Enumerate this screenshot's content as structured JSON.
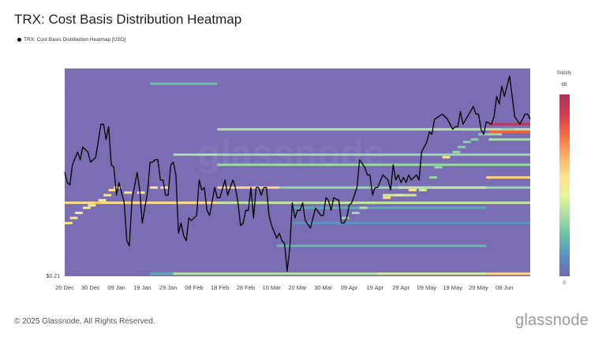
{
  "header": {
    "title": "TRX: Cost Basis Distribution Heatmap",
    "legend_label": "TRX: Cost Basis Distribution Heatmap [USD]"
  },
  "footer": {
    "copyright": "© 2025 Glassnode. All Rights Reserved.",
    "logo": "glassnode"
  },
  "watermark": "glassnode",
  "colorbar": {
    "title": "Supply",
    "max_label": "6B",
    "min_label": "0",
    "colors": [
      "#6f6ab0",
      "#5b8fc6",
      "#66c2a5",
      "#abdda4",
      "#e6f598",
      "#fee08b",
      "#fdae61",
      "#f46d43",
      "#d53e4f",
      "#b03060"
    ]
  },
  "chart_data": {
    "type": "heatmap",
    "title": "TRX: Cost Basis Distribution Heatmap",
    "background_color": "#7a6db3",
    "line_color": "#000000",
    "xlim": [
      "2024-12-20",
      "2025-06-18"
    ],
    "ylim": [
      0.21,
      0.292
    ],
    "y_tick_labels": [
      "$0.21"
    ],
    "x_tick_labels": [
      {
        "date": "2024-12-20",
        "label": "20 Dec"
      },
      {
        "date": "2024-12-30",
        "label": "30 Dec"
      },
      {
        "date": "2025-01-09",
        "label": "09 Jan"
      },
      {
        "date": "2025-01-19",
        "label": "19 Jan"
      },
      {
        "date": "2025-01-29",
        "label": "29 Jan"
      },
      {
        "date": "2025-02-08",
        "label": "08 Feb"
      },
      {
        "date": "2025-02-18",
        "label": "18 Feb"
      },
      {
        "date": "2025-02-28",
        "label": "28 Feb"
      },
      {
        "date": "2025-03-10",
        "label": "10 Mar"
      },
      {
        "date": "2025-03-20",
        "label": "20 Mar"
      },
      {
        "date": "2025-03-30",
        "label": "30 Mar"
      },
      {
        "date": "2025-04-09",
        "label": "09 Apr"
      },
      {
        "date": "2025-04-19",
        "label": "19 Apr"
      },
      {
        "date": "2025-04-29",
        "label": "29 Apr"
      },
      {
        "date": "2025-05-09",
        "label": "09 May"
      },
      {
        "date": "2025-05-19",
        "label": "19 May"
      },
      {
        "date": "2025-05-29",
        "label": "29 May"
      },
      {
        "date": "2025-06-08",
        "label": "08 Jun"
      }
    ],
    "bands": [
      {
        "price": 0.286,
        "from": "2025-01-22",
        "to": "2025-02-17",
        "level": 0.22
      },
      {
        "price": 0.268,
        "from": "2025-02-17",
        "to": "2025-06-18",
        "level": 0.36
      },
      {
        "price": 0.258,
        "from": "2025-01-31",
        "to": "2025-02-17",
        "level": 0.33
      },
      {
        "price": 0.258,
        "from": "2025-02-17",
        "to": "2025-06-18",
        "level": 0.3
      },
      {
        "price": 0.254,
        "from": "2025-02-17",
        "to": "2025-06-18",
        "level": 0.3
      },
      {
        "price": 0.245,
        "from": "2025-02-17",
        "to": "2025-03-13",
        "level": 0.58
      },
      {
        "price": 0.245,
        "from": "2025-03-13",
        "to": "2025-06-18",
        "level": 0.3
      },
      {
        "price": 0.239,
        "from": "2024-12-20",
        "to": "2025-02-17",
        "level": 0.56
      },
      {
        "price": 0.239,
        "from": "2025-02-17",
        "to": "2025-06-18",
        "level": 0.38
      },
      {
        "price": 0.237,
        "from": "2025-03-18",
        "to": "2025-06-01",
        "level": 0.17
      },
      {
        "price": 0.231,
        "from": "2025-03-18",
        "to": "2025-06-18",
        "level": 0.12
      },
      {
        "price": 0.222,
        "from": "2025-03-12",
        "to": "2025-06-01",
        "level": 0.2
      },
      {
        "price": 0.211,
        "from": "2025-01-22",
        "to": "2025-01-31",
        "level": 0.17
      },
      {
        "price": 0.211,
        "from": "2025-01-31",
        "to": "2025-04-20",
        "level": 0.36
      },
      {
        "price": 0.211,
        "from": "2025-04-20",
        "to": "2025-06-01",
        "level": 0.42
      },
      {
        "price": 0.211,
        "from": "2025-06-01",
        "to": "2025-06-18",
        "level": 0.58
      },
      {
        "price": 0.245,
        "from": "2025-04-28",
        "to": "2025-06-01",
        "level": 0.38
      },
      {
        "price": 0.242,
        "from": "2025-04-22",
        "to": "2025-05-05",
        "level": 0.4
      },
      {
        "price": 0.249,
        "from": "2025-06-01",
        "to": "2025-06-18",
        "level": 0.58
      },
      {
        "price": 0.264,
        "from": "2025-06-02",
        "to": "2025-06-18",
        "level": 0.34
      },
      {
        "price": 0.267,
        "from": "2025-06-02",
        "to": "2025-06-18",
        "level": 0.8
      },
      {
        "price": 0.27,
        "from": "2025-06-02",
        "to": "2025-06-18",
        "level": 0.95
      }
    ],
    "steps": [
      {
        "date": "2024-12-20",
        "price": 0.231,
        "level": 0.52
      },
      {
        "date": "2024-12-22",
        "price": 0.233,
        "level": 0.52
      },
      {
        "date": "2024-12-24",
        "price": 0.235,
        "level": 0.52
      },
      {
        "date": "2024-12-27",
        "price": 0.237,
        "level": 0.5
      },
      {
        "date": "2024-12-29",
        "price": 0.238,
        "level": 0.5
      },
      {
        "date": "2024-12-31",
        "price": 0.239,
        "level": 0.62
      },
      {
        "date": "2025-01-02",
        "price": 0.24,
        "level": 0.5
      },
      {
        "date": "2025-01-04",
        "price": 0.242,
        "level": 0.52
      },
      {
        "date": "2025-01-06",
        "price": 0.244,
        "level": 0.55
      },
      {
        "date": "2025-01-08",
        "price": 0.245,
        "level": 0.55
      },
      {
        "date": "2025-01-12",
        "price": 0.243,
        "level": 0.55
      },
      {
        "date": "2025-01-17",
        "price": 0.243,
        "level": 0.55
      },
      {
        "date": "2025-01-22",
        "price": 0.245,
        "level": 0.55
      },
      {
        "date": "2025-01-26",
        "price": 0.245,
        "level": 0.55
      },
      {
        "date": "2025-04-06",
        "price": 0.233,
        "level": 0.3
      },
      {
        "date": "2025-04-10",
        "price": 0.235,
        "level": 0.32
      },
      {
        "date": "2025-04-13",
        "price": 0.237,
        "level": 0.35
      },
      {
        "date": "2025-04-16",
        "price": 0.239,
        "level": 0.38
      },
      {
        "date": "2025-04-22",
        "price": 0.241,
        "level": 0.56
      },
      {
        "date": "2025-04-27",
        "price": 0.242,
        "level": 0.45
      },
      {
        "date": "2025-05-02",
        "price": 0.244,
        "level": 0.56
      },
      {
        "date": "2025-05-06",
        "price": 0.244,
        "level": 0.4
      },
      {
        "date": "2025-05-08",
        "price": 0.245,
        "level": 0.35
      },
      {
        "date": "2025-05-10",
        "price": 0.249,
        "level": 0.3
      },
      {
        "date": "2025-05-12",
        "price": 0.253,
        "level": 0.3
      },
      {
        "date": "2025-05-15",
        "price": 0.257,
        "level": 0.55
      },
      {
        "date": "2025-05-17",
        "price": 0.258,
        "level": 0.3
      },
      {
        "date": "2025-05-19",
        "price": 0.259,
        "level": 0.3
      },
      {
        "date": "2025-05-21",
        "price": 0.261,
        "level": 0.28
      },
      {
        "date": "2025-05-23",
        "price": 0.263,
        "level": 0.28
      },
      {
        "date": "2025-05-26",
        "price": 0.264,
        "level": 0.28
      },
      {
        "date": "2025-05-29",
        "price": 0.266,
        "level": 0.28
      },
      {
        "date": "2025-06-01",
        "price": 0.266,
        "level": 0.3
      },
      {
        "date": "2025-06-04",
        "price": 0.266,
        "level": 0.3
      },
      {
        "date": "2025-06-07",
        "price": 0.268,
        "level": 0.3
      },
      {
        "date": "2025-06-09",
        "price": 0.268,
        "level": 0.3
      }
    ],
    "price_series": [
      [
        "2024-12-20",
        0.251
      ],
      [
        "2024-12-21",
        0.247
      ],
      [
        "2024-12-22",
        0.246
      ],
      [
        "2024-12-23",
        0.254
      ],
      [
        "2024-12-25",
        0.259
      ],
      [
        "2024-12-26",
        0.256
      ],
      [
        "2024-12-27",
        0.261
      ],
      [
        "2024-12-29",
        0.259
      ],
      [
        "2024-12-30",
        0.255
      ],
      [
        "2025-01-01",
        0.257
      ],
      [
        "2025-01-03",
        0.27
      ],
      [
        "2025-01-04",
        0.27
      ],
      [
        "2025-01-05",
        0.264
      ],
      [
        "2025-01-06",
        0.269
      ],
      [
        "2025-01-07",
        0.254
      ],
      [
        "2025-01-08",
        0.253
      ],
      [
        "2025-01-09",
        0.242
      ],
      [
        "2025-01-10",
        0.247
      ],
      [
        "2025-01-12",
        0.239
      ],
      [
        "2025-01-13",
        0.224
      ],
      [
        "2025-01-14",
        0.222
      ],
      [
        "2025-01-15",
        0.24
      ],
      [
        "2025-01-17",
        0.251
      ],
      [
        "2025-01-18",
        0.244
      ],
      [
        "2025-01-19",
        0.231
      ],
      [
        "2025-01-21",
        0.243
      ],
      [
        "2025-01-22",
        0.255
      ],
      [
        "2025-01-23",
        0.255
      ],
      [
        "2025-01-24",
        0.256
      ],
      [
        "2025-01-25",
        0.256
      ],
      [
        "2025-01-26",
        0.248
      ],
      [
        "2025-01-27",
        0.248
      ],
      [
        "2025-01-28",
        0.242
      ],
      [
        "2025-01-29",
        0.242
      ],
      [
        "2025-01-30",
        0.254
      ],
      [
        "2025-01-31",
        0.255
      ],
      [
        "2025-02-01",
        0.25
      ],
      [
        "2025-02-02",
        0.227
      ],
      [
        "2025-02-03",
        0.231
      ],
      [
        "2025-02-04",
        0.226
      ],
      [
        "2025-02-05",
        0.224
      ],
      [
        "2025-02-06",
        0.233
      ],
      [
        "2025-02-07",
        0.232
      ],
      [
        "2025-02-09",
        0.234
      ],
      [
        "2025-02-10",
        0.248
      ],
      [
        "2025-02-11",
        0.244
      ],
      [
        "2025-02-12",
        0.245
      ],
      [
        "2025-02-13",
        0.236
      ],
      [
        "2025-02-14",
        0.234
      ],
      [
        "2025-02-16",
        0.245
      ],
      [
        "2025-02-17",
        0.241
      ],
      [
        "2025-02-18",
        0.241
      ],
      [
        "2025-02-20",
        0.248
      ],
      [
        "2025-02-21",
        0.242
      ],
      [
        "2025-02-23",
        0.248
      ],
      [
        "2025-02-24",
        0.245
      ],
      [
        "2025-02-25",
        0.239
      ],
      [
        "2025-02-26",
        0.23
      ],
      [
        "2025-02-27",
        0.231
      ],
      [
        "2025-02-28",
        0.236
      ],
      [
        "2025-03-01",
        0.236
      ],
      [
        "2025-03-02",
        0.245
      ],
      [
        "2025-03-03",
        0.233
      ],
      [
        "2025-03-04",
        0.245
      ],
      [
        "2025-03-05",
        0.245
      ],
      [
        "2025-03-06",
        0.242
      ],
      [
        "2025-03-07",
        0.245
      ],
      [
        "2025-03-08",
        0.245
      ],
      [
        "2025-03-09",
        0.234
      ],
      [
        "2025-03-10",
        0.23
      ],
      [
        "2025-03-12",
        0.225
      ],
      [
        "2025-03-13",
        0.227
      ],
      [
        "2025-03-14",
        0.224
      ],
      [
        "2025-03-15",
        0.223
      ],
      [
        "2025-03-16",
        0.212
      ],
      [
        "2025-03-17",
        0.221
      ],
      [
        "2025-03-18",
        0.239
      ],
      [
        "2025-03-19",
        0.233
      ],
      [
        "2025-03-20",
        0.236
      ],
      [
        "2025-03-21",
        0.236
      ],
      [
        "2025-03-22",
        0.239
      ],
      [
        "2025-03-23",
        0.232
      ],
      [
        "2025-03-25",
        0.229
      ],
      [
        "2025-03-27",
        0.237
      ],
      [
        "2025-03-29",
        0.234
      ],
      [
        "2025-03-30",
        0.234
      ],
      [
        "2025-03-31",
        0.241
      ],
      [
        "2025-04-01",
        0.24
      ],
      [
        "2025-04-02",
        0.236
      ],
      [
        "2025-04-03",
        0.241
      ],
      [
        "2025-04-05",
        0.24
      ],
      [
        "2025-04-06",
        0.231
      ],
      [
        "2025-04-07",
        0.231
      ],
      [
        "2025-04-08",
        0.233
      ],
      [
        "2025-04-09",
        0.238
      ],
      [
        "2025-04-10",
        0.239
      ],
      [
        "2025-04-12",
        0.245
      ],
      [
        "2025-04-13",
        0.256
      ],
      [
        "2025-04-15",
        0.253
      ],
      [
        "2025-04-16",
        0.25
      ],
      [
        "2025-04-17",
        0.25
      ],
      [
        "2025-04-18",
        0.242
      ],
      [
        "2025-04-19",
        0.245
      ],
      [
        "2025-04-20",
        0.245
      ],
      [
        "2025-04-22",
        0.25
      ],
      [
        "2025-04-24",
        0.248
      ],
      [
        "2025-04-25",
        0.244
      ],
      [
        "2025-04-26",
        0.254
      ],
      [
        "2025-04-27",
        0.248
      ],
      [
        "2025-04-28",
        0.25
      ],
      [
        "2025-04-29",
        0.247
      ],
      [
        "2025-04-30",
        0.249
      ],
      [
        "2025-05-01",
        0.247
      ],
      [
        "2025-05-02",
        0.25
      ],
      [
        "2025-05-03",
        0.248
      ],
      [
        "2025-05-05",
        0.25
      ],
      [
        "2025-05-06",
        0.248
      ],
      [
        "2025-05-07",
        0.259
      ],
      [
        "2025-05-09",
        0.263
      ],
      [
        "2025-05-10",
        0.267
      ],
      [
        "2025-05-11",
        0.266
      ],
      [
        "2025-05-12",
        0.272
      ],
      [
        "2025-05-15",
        0.274
      ],
      [
        "2025-05-17",
        0.272
      ],
      [
        "2025-05-19",
        0.268
      ],
      [
        "2025-05-20",
        0.269
      ],
      [
        "2025-05-21",
        0.269
      ],
      [
        "2025-05-22",
        0.275
      ],
      [
        "2025-05-23",
        0.27
      ],
      [
        "2025-05-27",
        0.277
      ],
      [
        "2025-05-28",
        0.274
      ],
      [
        "2025-05-29",
        0.274
      ],
      [
        "2025-05-30",
        0.268
      ],
      [
        "2025-05-31",
        0.266
      ],
      [
        "2025-06-01",
        0.271
      ],
      [
        "2025-06-03",
        0.27
      ],
      [
        "2025-06-04",
        0.273
      ],
      [
        "2025-06-05",
        0.281
      ],
      [
        "2025-06-06",
        0.278
      ],
      [
        "2025-06-07",
        0.285
      ],
      [
        "2025-06-08",
        0.281
      ],
      [
        "2025-06-10",
        0.289
      ],
      [
        "2025-06-12",
        0.273
      ],
      [
        "2025-06-14",
        0.27
      ],
      [
        "2025-06-16",
        0.274
      ],
      [
        "2025-06-17",
        0.274
      ],
      [
        "2025-06-18",
        0.272
      ]
    ]
  }
}
